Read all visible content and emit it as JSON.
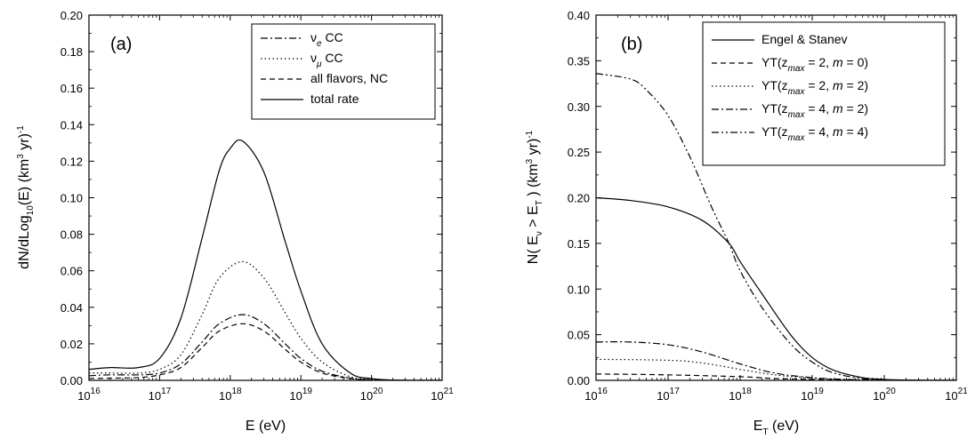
{
  "chart_data": [
    {
      "type": "line",
      "panel_label": "(a)",
      "xlabel": "E (eV)",
      "ylabel_parts": [
        "dN/dLog",
        "10",
        "(E) (km",
        "3",
        " yr)",
        "-1"
      ],
      "xscale": "log",
      "xlim": [
        1e+16,
        1e+21
      ],
      "ylim": [
        0,
        0.2
      ],
      "xticks": [
        {
          "base": "10",
          "exp": "16"
        },
        {
          "base": "10",
          "exp": "17"
        },
        {
          "base": "10",
          "exp": "18"
        },
        {
          "base": "10",
          "exp": "19"
        },
        {
          "base": "10",
          "exp": "20"
        },
        {
          "base": "10",
          "exp": "21"
        }
      ],
      "yticks": [
        "0.00",
        "0.02",
        "0.04",
        "0.06",
        "0.08",
        "0.10",
        "0.12",
        "0.14",
        "0.16",
        "0.18",
        "0.20"
      ],
      "legend_position": "top-right",
      "legend": [
        {
          "main": "ν",
          "sub": "e",
          "rest": " CC",
          "dash": "8,3,2,3"
        },
        {
          "main": "ν",
          "sub": "μ",
          "rest": " CC",
          "dash": "1.5,3"
        },
        {
          "main": "all flavors, NC",
          "sub": "",
          "rest": "",
          "dash": "6,4"
        },
        {
          "main": "total rate",
          "sub": "",
          "rest": "",
          "dash": ""
        }
      ],
      "series": [
        {
          "dash": "8,3,2,3",
          "x": [
            1e+16,
            2e+16,
            5e+16,
            1e+17,
            2e+17,
            4e+17,
            7e+17,
            1.5e+18,
            3e+18,
            6e+18,
            1e+19,
            2e+19,
            5e+19,
            1e+20,
            2e+20,
            5e+20,
            1e+21
          ],
          "y": [
            0.0025,
            0.003,
            0.003,
            0.004,
            0.009,
            0.021,
            0.031,
            0.036,
            0.031,
            0.02,
            0.012,
            0.005,
            0.0012,
            0.0003,
            0.0001,
            0,
            0
          ]
        },
        {
          "dash": "1.5,3",
          "x": [
            1e+16,
            2e+16,
            5e+16,
            1e+17,
            2e+17,
            4e+17,
            7e+17,
            1.5e+18,
            3e+18,
            6e+18,
            1e+19,
            2e+19,
            5e+19,
            1e+20,
            2e+20,
            5e+20,
            1e+21
          ],
          "y": [
            0.004,
            0.004,
            0.004,
            0.006,
            0.014,
            0.036,
            0.056,
            0.065,
            0.056,
            0.037,
            0.023,
            0.01,
            0.002,
            0.0005,
            0.0002,
            0,
            0
          ]
        },
        {
          "dash": "6,4",
          "x": [
            1e+16,
            2e+16,
            5e+16,
            1e+17,
            2e+17,
            4e+17,
            7e+17,
            1.5e+18,
            3e+18,
            6e+18,
            1e+19,
            2e+19,
            5e+19,
            1e+20,
            2e+20,
            5e+20,
            1e+21
          ],
          "y": [
            0.001,
            0.0012,
            0.0015,
            0.003,
            0.007,
            0.018,
            0.027,
            0.031,
            0.027,
            0.017,
            0.01,
            0.004,
            0.001,
            0.0002,
            0.0001,
            0,
            0
          ]
        },
        {
          "dash": "",
          "x": [
            1e+16,
            2e+16,
            5e+16,
            1e+17,
            2e+17,
            4e+17,
            7e+17,
            1e+18,
            1.5e+18,
            3e+18,
            6e+18,
            1e+19,
            2e+19,
            5e+19,
            1e+20,
            2e+20,
            5e+20,
            1e+21
          ],
          "y": [
            0.006,
            0.007,
            0.007,
            0.012,
            0.034,
            0.078,
            0.115,
            0.127,
            0.131,
            0.114,
            0.076,
            0.049,
            0.02,
            0.004,
            0.001,
            0.0002,
            0,
            0
          ]
        }
      ]
    },
    {
      "type": "line",
      "panel_label": "(b)",
      "xlabel_parts": [
        "E",
        "T",
        " (eV)"
      ],
      "ylabel_parts": [
        "N( E",
        "ν",
        " > E",
        "T",
        " )  (km",
        "3",
        " yr)",
        "-1"
      ],
      "xscale": "log",
      "xlim": [
        1e+16,
        1e+21
      ],
      "ylim": [
        0,
        0.4
      ],
      "xticks": [
        {
          "base": "10",
          "exp": "16"
        },
        {
          "base": "10",
          "exp": "17"
        },
        {
          "base": "10",
          "exp": "18"
        },
        {
          "base": "10",
          "exp": "19"
        },
        {
          "base": "10",
          "exp": "20"
        },
        {
          "base": "10",
          "exp": "21"
        }
      ],
      "yticks": [
        "0.00",
        "0.05",
        "0.10",
        "0.15",
        "0.20",
        "0.25",
        "0.30",
        "0.35",
        "0.40"
      ],
      "legend_position": "top-right",
      "legend": [
        {
          "pre": "Engel & Stanev",
          "zsub": "",
          "mid": "",
          "m": "",
          "post": "",
          "dash": ""
        },
        {
          "pre": "YT(z",
          "zsub": "max",
          "mid": " = 2, ",
          "m": "m",
          "post": " = 0)",
          "dash": "6,4"
        },
        {
          "pre": "YT(z",
          "zsub": "max",
          "mid": " = 2, ",
          "m": "m",
          "post": " = 2)",
          "dash": "1.5,3"
        },
        {
          "pre": "YT(z",
          "zsub": "max",
          "mid": " = 4, ",
          "m": "m",
          "post": " = 2)",
          "dash": "8,3,2,3"
        },
        {
          "pre": "YT(z",
          "zsub": "max",
          "mid": " = 4, ",
          "m": "m",
          "post": " = 4)",
          "dash": "8,3,2,3,2,3"
        }
      ],
      "series": [
        {
          "dash": "",
          "x": [
            1e+16,
            3e+16,
            1e+17,
            3e+17,
            7e+17,
            1e+18,
            2e+18,
            5e+18,
            1e+19,
            2e+19,
            5e+19,
            1e+20,
            3e+20,
            1e+21
          ],
          "y": [
            0.2,
            0.197,
            0.19,
            0.175,
            0.15,
            0.13,
            0.095,
            0.05,
            0.025,
            0.011,
            0.003,
            0.001,
            0.0002,
            0
          ]
        },
        {
          "dash": "6,4",
          "x": [
            1e+16,
            1e+17,
            1e+18,
            3e+18,
            1e+19,
            3e+19,
            1e+20,
            1e+21
          ],
          "y": [
            0.007,
            0.006,
            0.004,
            0.002,
            0.001,
            0.0004,
            0.0001,
            0
          ]
        },
        {
          "dash": "1.5,3",
          "x": [
            1e+16,
            1e+17,
            3e+17,
            1e+18,
            3e+18,
            1e+19,
            3e+19,
            1e+20,
            1e+21
          ],
          "y": [
            0.023,
            0.022,
            0.019,
            0.012,
            0.006,
            0.0025,
            0.0008,
            0.0002,
            0
          ]
        },
        {
          "dash": "8,3,2,3",
          "x": [
            1e+16,
            3e+16,
            1e+17,
            3e+17,
            1e+18,
            3e+18,
            1e+19,
            3e+19,
            1e+20,
            1e+21
          ],
          "y": [
            0.042,
            0.042,
            0.039,
            0.031,
            0.018,
            0.008,
            0.003,
            0.001,
            0.0002,
            0
          ]
        },
        {
          "dash": "8,3,2,3,2,3",
          "x": [
            1e+16,
            3e+16,
            5e+16,
            1e+17,
            2e+17,
            4e+17,
            7e+17,
            1e+18,
            2e+18,
            5e+18,
            1e+19,
            2e+19,
            5e+19,
            1e+20,
            3e+20,
            1e+21
          ],
          "y": [
            0.336,
            0.33,
            0.318,
            0.29,
            0.245,
            0.19,
            0.15,
            0.12,
            0.08,
            0.04,
            0.02,
            0.008,
            0.002,
            0.0006,
            0.0001,
            0
          ]
        }
      ]
    }
  ]
}
